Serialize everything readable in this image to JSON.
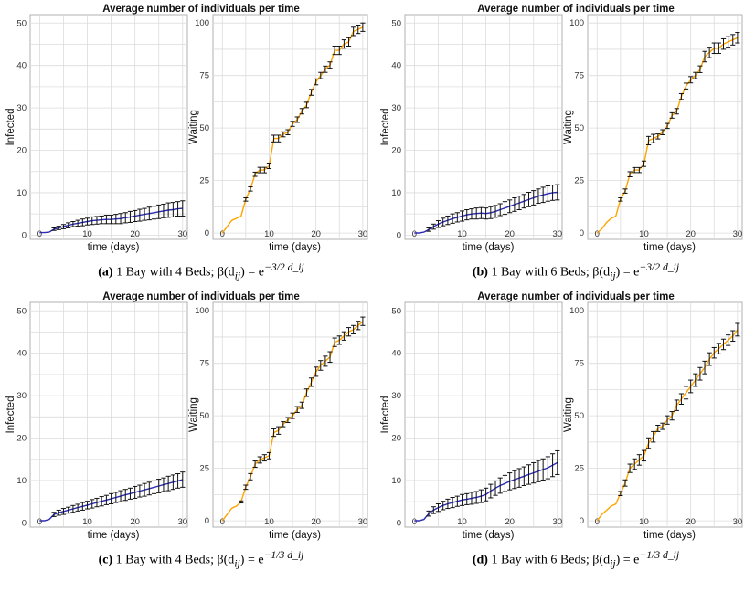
{
  "colors": {
    "infected_line": "#2b2bb5",
    "waiting_line": "#ffa500",
    "error_bar": "#111111",
    "grid": "#dcdcdc",
    "border": "#b0b0b0"
  },
  "panels": [
    {
      "id": "a",
      "title": "Average number of individuals per time",
      "caption": {
        "label": "(a)",
        "text": "1 Bay with 4 Beds; β(d",
        "sub": "ij",
        "eq": ") = e",
        "exp": "−3/2 d_ij"
      },
      "charts": [
        {
          "type": "line",
          "ylabel": "Infected",
          "xlabel": "time (days)",
          "xlim": [
            -2,
            31
          ],
          "ylim": [
            -1,
            52
          ],
          "yticks": [
            0,
            10,
            20,
            30,
            40,
            50
          ],
          "xticks": [
            0,
            10,
            20,
            30
          ],
          "line_color": "#2b2bb5",
          "x": [
            0,
            1,
            2,
            3,
            4,
            5,
            6,
            7,
            8,
            9,
            10,
            11,
            12,
            13,
            14,
            15,
            16,
            17,
            18,
            19,
            20,
            21,
            22,
            23,
            24,
            25,
            26,
            27,
            28,
            29,
            30
          ],
          "y": [
            0.6,
            0.6,
            0.7,
            1.4,
            1.7,
            2.0,
            2.3,
            2.6,
            2.8,
            3.0,
            3.2,
            3.4,
            3.5,
            3.6,
            3.7,
            3.7,
            3.8,
            3.9,
            4.1,
            4.3,
            4.5,
            4.7,
            4.9,
            5.1,
            5.3,
            5.5,
            5.7,
            5.9,
            6.0,
            6.2,
            6.3
          ],
          "err": [
            0,
            0,
            0,
            0.3,
            0.4,
            0.5,
            0.6,
            0.6,
            0.7,
            0.8,
            0.8,
            0.9,
            0.9,
            0.9,
            1.0,
            1.0,
            1.1,
            1.2,
            1.2,
            1.3,
            1.3,
            1.4,
            1.4,
            1.5,
            1.5,
            1.6,
            1.6,
            1.7,
            1.7,
            1.7,
            1.8
          ]
        },
        {
          "type": "line",
          "ylabel": "Waiting",
          "xlabel": "time (days)",
          "xlim": [
            -2,
            31
          ],
          "ylim": [
            -3,
            104
          ],
          "yticks": [
            0,
            25,
            50,
            75,
            100
          ],
          "xticks": [
            0,
            10,
            20,
            30
          ],
          "line_color": "#ffa500",
          "x": [
            0,
            1,
            2,
            3,
            4,
            5,
            6,
            7,
            8,
            9,
            10,
            11,
            12,
            13,
            14,
            15,
            16,
            17,
            18,
            19,
            20,
            21,
            22,
            23,
            24,
            25,
            26,
            27,
            28,
            29,
            30
          ],
          "y": [
            0,
            3,
            6,
            7,
            8,
            16,
            21,
            28,
            30,
            30,
            32,
            45,
            45,
            47,
            48,
            52,
            54,
            58,
            61,
            67,
            72,
            75,
            78,
            80,
            87,
            87,
            90,
            91,
            96,
            97,
            98
          ],
          "err": [
            0,
            0,
            0,
            0,
            0,
            0.8,
            1,
            1,
            1.3,
            1.3,
            1.3,
            1.6,
            1.6,
            1.2,
            1.2,
            1.2,
            1.3,
            1.3,
            1.3,
            1.4,
            1.4,
            1.5,
            1.5,
            1.5,
            2,
            2,
            2,
            2,
            2,
            2,
            2
          ]
        }
      ]
    },
    {
      "id": "b",
      "title": "Average number of individuals per time",
      "caption": {
        "label": "(b)",
        "text": "1 Bay with 6 Beds; β(d",
        "sub": "ij",
        "eq": ") = e",
        "exp": "−3/2 d_ij"
      },
      "charts": [
        {
          "type": "line",
          "ylabel": "Infected",
          "xlabel": "time (days)",
          "xlim": [
            -2,
            31
          ],
          "ylim": [
            -1,
            52
          ],
          "yticks": [
            0,
            10,
            20,
            30,
            40,
            50
          ],
          "xticks": [
            0,
            10,
            20,
            30
          ],
          "line_color": "#2b2bb5",
          "x": [
            0,
            1,
            2,
            3,
            4,
            5,
            6,
            7,
            8,
            9,
            10,
            11,
            12,
            13,
            14,
            15,
            16,
            17,
            18,
            19,
            20,
            21,
            22,
            23,
            24,
            25,
            26,
            27,
            28,
            29,
            30
          ],
          "y": [
            0.5,
            0.5,
            0.7,
            1.3,
            2.0,
            2.6,
            3.1,
            3.5,
            3.9,
            4.2,
            4.5,
            4.8,
            5.0,
            5.1,
            5.2,
            5.1,
            5.3,
            5.6,
            6.0,
            6.4,
            6.8,
            7.2,
            7.6,
            8.0,
            8.4,
            8.8,
            9.2,
            9.5,
            9.8,
            10.0,
            10.1
          ],
          "err": [
            0,
            0,
            0,
            0.4,
            0.6,
            0.8,
            0.9,
            1.0,
            1.1,
            1.1,
            1.2,
            1.2,
            1.2,
            1.3,
            1.3,
            1.3,
            1.4,
            1.4,
            1.4,
            1.5,
            1.5,
            1.6,
            1.6,
            1.6,
            1.7,
            1.7,
            1.7,
            1.8,
            1.8,
            1.8,
            1.8
          ]
        },
        {
          "type": "line",
          "ylabel": "Waiting",
          "xlabel": "time (days)",
          "xlim": [
            -2,
            31
          ],
          "ylim": [
            -3,
            104
          ],
          "yticks": [
            0,
            25,
            50,
            75,
            100
          ],
          "xticks": [
            0,
            10,
            20,
            30
          ],
          "line_color": "#ffa500",
          "x": [
            0,
            1,
            2,
            3,
            4,
            5,
            6,
            7,
            8,
            9,
            10,
            11,
            12,
            13,
            14,
            15,
            16,
            17,
            18,
            19,
            20,
            21,
            22,
            23,
            24,
            25,
            26,
            27,
            28,
            29,
            30
          ],
          "y": [
            0,
            2,
            5,
            7,
            8,
            16,
            20,
            28,
            30,
            30,
            33,
            44,
            45,
            46,
            48,
            51,
            56,
            58,
            65,
            70,
            73,
            75,
            78,
            84,
            86,
            88,
            88,
            90,
            91,
            92,
            93
          ],
          "err": [
            0,
            0,
            0,
            0,
            0,
            0.8,
            1,
            1.2,
            1.2,
            1.2,
            1.3,
            2,
            2,
            1.2,
            1.2,
            1.2,
            1.3,
            1.3,
            1.4,
            1.4,
            1.5,
            1.5,
            1.6,
            2.5,
            2.5,
            2.5,
            2.5,
            2.5,
            2.5,
            2.5,
            2.5
          ]
        }
      ]
    },
    {
      "id": "c",
      "title": "Average number of individuals per time",
      "caption": {
        "label": "(c)",
        "text": "1 Bay with 4 Beds; β(d",
        "sub": "ij",
        "eq": ") = e",
        "exp": "−1/3 d_ij"
      },
      "charts": [
        {
          "type": "line",
          "ylabel": "Infected",
          "xlabel": "time (days)",
          "xlim": [
            -2,
            31
          ],
          "ylim": [
            -1,
            52
          ],
          "yticks": [
            0,
            10,
            20,
            30,
            40,
            50
          ],
          "xticks": [
            0,
            10,
            20,
            30
          ],
          "line_color": "#2b2bb5",
          "x": [
            0,
            1,
            2,
            3,
            4,
            5,
            6,
            7,
            8,
            9,
            10,
            11,
            12,
            13,
            14,
            15,
            16,
            17,
            18,
            19,
            20,
            21,
            22,
            23,
            24,
            25,
            26,
            27,
            28,
            29,
            30
          ],
          "y": [
            0.5,
            0.5,
            0.8,
            2.0,
            2.4,
            2.7,
            3.0,
            3.3,
            3.6,
            3.9,
            4.2,
            4.5,
            4.8,
            5.1,
            5.4,
            5.7,
            6.0,
            6.3,
            6.6,
            6.9,
            7.2,
            7.5,
            7.8,
            8.1,
            8.4,
            8.7,
            9.0,
            9.3,
            9.6,
            9.9,
            10.2
          ],
          "err": [
            0,
            0,
            0,
            0.5,
            0.6,
            0.7,
            0.7,
            0.8,
            0.8,
            0.9,
            0.9,
            1.0,
            1.0,
            1.1,
            1.1,
            1.2,
            1.2,
            1.3,
            1.3,
            1.3,
            1.4,
            1.4,
            1.5,
            1.5,
            1.5,
            1.6,
            1.6,
            1.7,
            1.7,
            1.7,
            1.8
          ]
        },
        {
          "type": "line",
          "ylabel": "Waiting",
          "xlabel": "time (days)",
          "xlim": [
            -2,
            31
          ],
          "ylim": [
            -3,
            104
          ],
          "yticks": [
            0,
            25,
            50,
            75,
            100
          ],
          "xticks": [
            0,
            10,
            20,
            30
          ],
          "line_color": "#ffa500",
          "x": [
            0,
            1,
            2,
            3,
            4,
            5,
            6,
            7,
            8,
            9,
            10,
            11,
            12,
            13,
            14,
            15,
            16,
            17,
            18,
            19,
            20,
            21,
            22,
            23,
            24,
            25,
            26,
            27,
            28,
            29,
            30
          ],
          "y": [
            0,
            3,
            6,
            7,
            9,
            16,
            21,
            27,
            29,
            30,
            31,
            42,
            43,
            46,
            48,
            50,
            53,
            55,
            61,
            66,
            71,
            74,
            76,
            78,
            85,
            86,
            88,
            90,
            91,
            93,
            95
          ],
          "err": [
            0,
            0,
            0,
            0,
            0.5,
            1,
            1.5,
            1.5,
            1.5,
            1.5,
            1.5,
            1.8,
            1.8,
            1.2,
            1.2,
            1.3,
            1.4,
            1.5,
            1.8,
            2,
            2.2,
            2.3,
            2.4,
            2.5,
            2,
            2,
            2,
            2,
            2,
            2,
            2
          ]
        }
      ]
    },
    {
      "id": "d",
      "title": "Average number of individuals per time",
      "caption": {
        "label": "(d)",
        "text": "1 Bay with 6 Beds; β(d",
        "sub": "ij",
        "eq": ") = e",
        "exp": "−1/3 d_ij"
      },
      "charts": [
        {
          "type": "line",
          "ylabel": "Infected",
          "xlabel": "time (days)",
          "xlim": [
            -2,
            31
          ],
          "ylim": [
            -1,
            52
          ],
          "yticks": [
            0,
            10,
            20,
            30,
            40,
            50
          ],
          "xticks": [
            0,
            10,
            20,
            30
          ],
          "line_color": "#2b2bb5",
          "x": [
            0,
            1,
            2,
            3,
            4,
            5,
            6,
            7,
            8,
            9,
            10,
            11,
            12,
            13,
            14,
            15,
            16,
            17,
            18,
            19,
            20,
            21,
            22,
            23,
            24,
            25,
            26,
            27,
            28,
            29,
            30
          ],
          "y": [
            0.5,
            0.5,
            0.8,
            2.2,
            3.0,
            3.6,
            4.1,
            4.5,
            4.8,
            5.1,
            5.4,
            5.6,
            5.8,
            6.0,
            6.3,
            6.7,
            7.5,
            8.2,
            8.8,
            9.3,
            9.8,
            10.2,
            10.6,
            11.0,
            11.4,
            11.8,
            12.2,
            12.6,
            13.0,
            13.6,
            14.2
          ],
          "err": [
            0,
            0,
            0,
            0.6,
            0.8,
            0.9,
            1.0,
            1.1,
            1.2,
            1.2,
            1.3,
            1.3,
            1.4,
            1.4,
            1.5,
            1.5,
            1.6,
            1.7,
            1.8,
            1.9,
            2.0,
            2.1,
            2.2,
            2.2,
            2.3,
            2.4,
            2.5,
            2.5,
            2.6,
            2.7,
            2.8
          ]
        },
        {
          "type": "line",
          "ylabel": "Waiting",
          "xlabel": "time (days)",
          "xlim": [
            -2,
            31
          ],
          "ylim": [
            -3,
            104
          ],
          "yticks": [
            0,
            25,
            50,
            75,
            100
          ],
          "xticks": [
            0,
            10,
            20,
            30
          ],
          "line_color": "#ffa500",
          "x": [
            0,
            1,
            2,
            3,
            4,
            5,
            6,
            7,
            8,
            9,
            10,
            11,
            12,
            13,
            14,
            15,
            16,
            17,
            18,
            19,
            20,
            21,
            22,
            23,
            24,
            25,
            26,
            27,
            28,
            29,
            30
          ],
          "y": [
            0,
            3,
            5,
            7,
            8,
            13,
            18,
            25,
            27,
            29,
            31,
            37,
            40,
            44,
            45,
            48,
            50,
            55,
            58,
            61,
            64,
            67,
            70,
            73,
            77,
            80,
            82,
            84,
            86,
            88,
            91
          ],
          "err": [
            0,
            0,
            0,
            0,
            0,
            1,
            1.5,
            2,
            2.5,
            2.5,
            2.5,
            2.5,
            2.5,
            1.5,
            1.5,
            2,
            2,
            2.5,
            2.5,
            3,
            3,
            3,
            3,
            3,
            3,
            2.5,
            2.5,
            2.5,
            2.5,
            2.5,
            3
          ]
        }
      ]
    }
  ]
}
